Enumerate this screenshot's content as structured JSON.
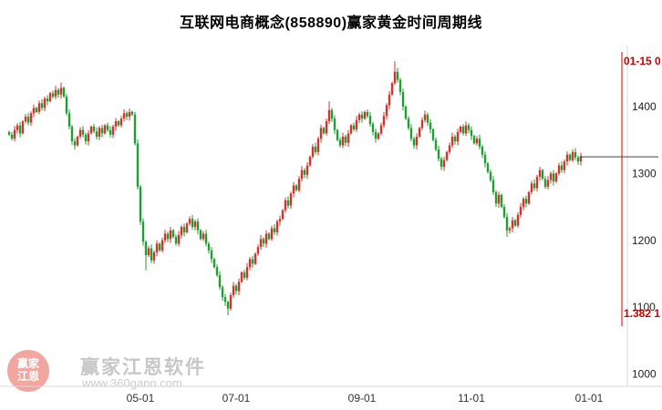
{
  "chart_data": {
    "type": "candlestick",
    "title": "互联网电商概念(858890)赢家黄金时间周期线",
    "ylabel": "",
    "xlabel": "",
    "y_ticks": [
      1400,
      1300,
      1200,
      1100,
      1000
    ],
    "ylim": [
      1000,
      1485
    ],
    "x_ticks": [
      {
        "label": "05-01",
        "index": 48
      },
      {
        "label": "07-01",
        "index": 83
      },
      {
        "label": "09-01",
        "index": 129
      },
      {
        "label": "11-01",
        "index": 169
      },
      {
        "label": "01-01",
        "index": 212
      }
    ],
    "grid": false,
    "legend": false,
    "first_open": 1362,
    "closes": [
      1358,
      1352,
      1365,
      1372,
      1360,
      1378,
      1385,
      1376,
      1390,
      1398,
      1392,
      1405,
      1398,
      1412,
      1408,
      1420,
      1415,
      1425,
      1418,
      1428,
      1415,
      1390,
      1370,
      1348,
      1342,
      1355,
      1365,
      1358,
      1348,
      1360,
      1370,
      1363,
      1355,
      1368,
      1360,
      1372,
      1365,
      1358,
      1370,
      1378,
      1372,
      1382,
      1390,
      1385,
      1392,
      1388,
      1345,
      1280,
      1228,
      1198,
      1178,
      1188,
      1170,
      1182,
      1195,
      1185,
      1200,
      1210,
      1202,
      1215,
      1205,
      1195,
      1208,
      1220,
      1212,
      1225,
      1232,
      1220,
      1228,
      1215,
      1202,
      1210,
      1195,
      1185,
      1172,
      1160,
      1148,
      1130,
      1115,
      1108,
      1098,
      1118,
      1132,
      1124,
      1138,
      1152,
      1144,
      1160,
      1172,
      1165,
      1180,
      1190,
      1202,
      1195,
      1210,
      1202,
      1218,
      1212,
      1228,
      1232,
      1245,
      1260,
      1252,
      1270,
      1282,
      1275,
      1292,
      1305,
      1298,
      1312,
      1325,
      1340,
      1332,
      1352,
      1368,
      1360,
      1378,
      1395,
      1382,
      1365,
      1350,
      1342,
      1355,
      1346,
      1360,
      1372,
      1366,
      1380,
      1388,
      1382,
      1392,
      1386,
      1374,
      1362,
      1352,
      1360,
      1372,
      1386,
      1402,
      1418,
      1435,
      1452,
      1440,
      1422,
      1400,
      1382,
      1368,
      1352,
      1342,
      1355,
      1368,
      1380,
      1388,
      1376,
      1366,
      1350,
      1336,
      1322,
      1310,
      1320,
      1332,
      1342,
      1355,
      1348,
      1362,
      1370,
      1360,
      1372,
      1365,
      1356,
      1345,
      1352,
      1340,
      1328,
      1315,
      1302,
      1290,
      1272,
      1255,
      1268,
      1250,
      1235,
      1215,
      1218,
      1230,
      1222,
      1238,
      1250,
      1262,
      1255,
      1272,
      1285,
      1278,
      1295,
      1305,
      1292,
      1280,
      1290,
      1300,
      1288,
      1300,
      1312,
      1305,
      1318,
      1328,
      1320,
      1332,
      1324,
      1318,
      1326
    ],
    "wick_overrides": {
      "19": {
        "high": 1436
      },
      "50": {
        "low": 1155
      },
      "80": {
        "low": 1088
      },
      "117": {
        "high": 1408
      },
      "141": {
        "high": 1468
      },
      "182": {
        "low": 1205
      }
    },
    "marker_line": {
      "price": 1325,
      "color": "#444444"
    },
    "vline": {
      "index": 224,
      "color": "#cc0000",
      "label_top": "01-15 0",
      "label_bottom": "1.382 1"
    },
    "colors": {
      "up": "#d0342c",
      "down": "#1f9e33",
      "axis_text": "#222222",
      "frame": "#d9d9d9"
    }
  },
  "watermark": {
    "logo_line1": "赢家",
    "logo_line2": "江恩",
    "name": "赢家江恩软件",
    "url": "www.360gann.com"
  }
}
